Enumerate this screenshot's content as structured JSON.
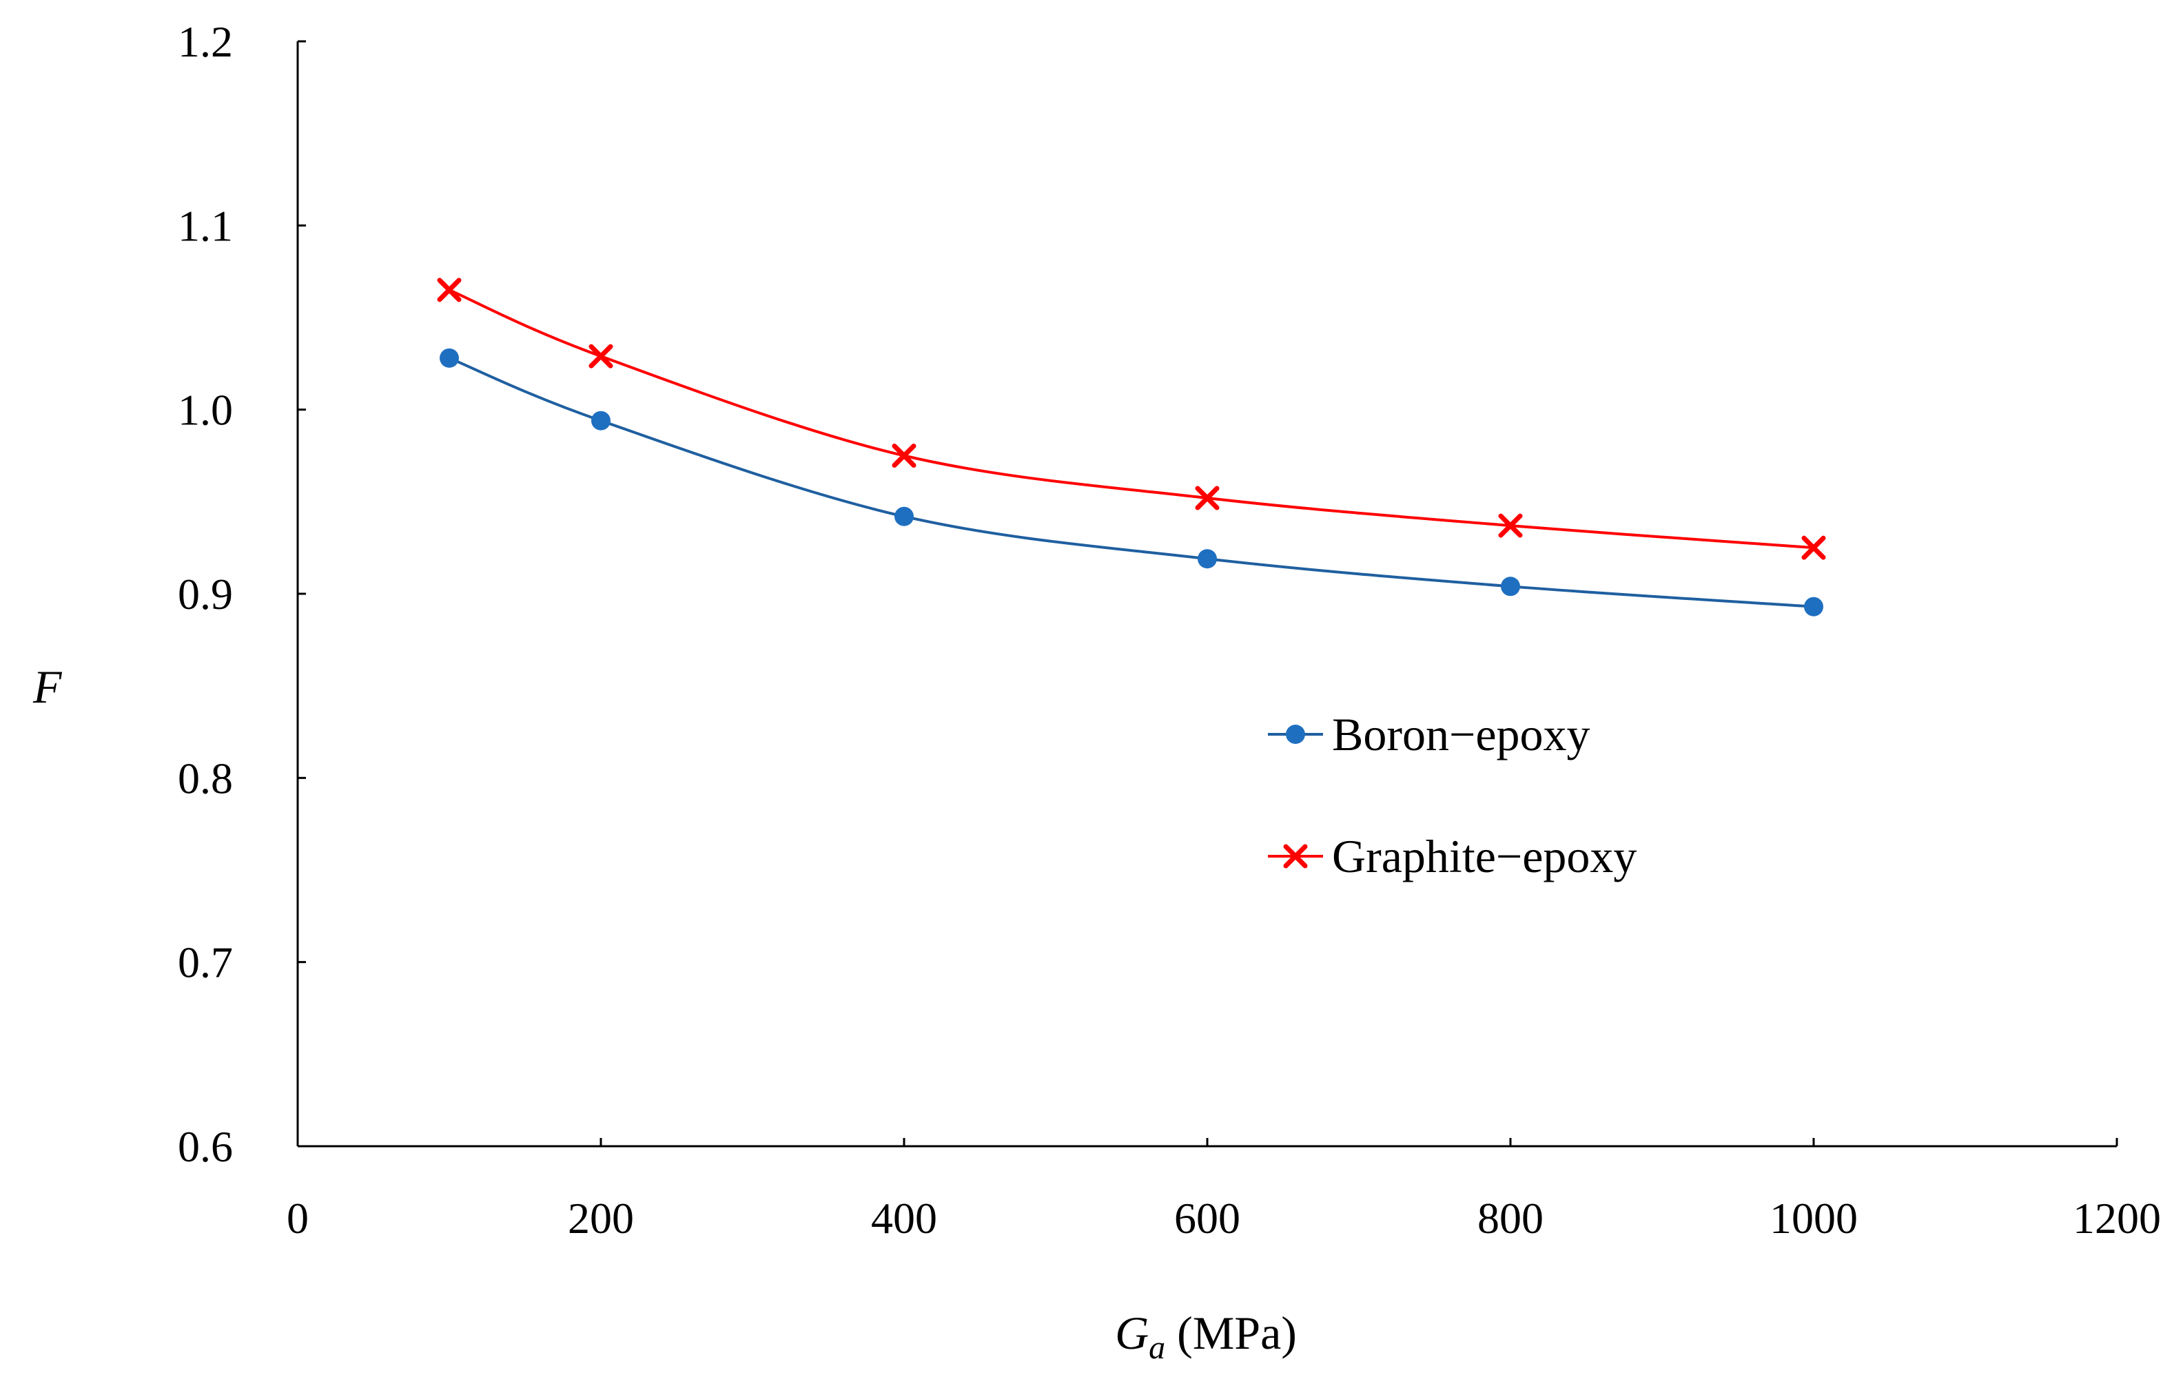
{
  "chart_data": {
    "type": "line",
    "title": "",
    "xlabel": {
      "main": "G",
      "sub": "a",
      "unit": " (MPa)"
    },
    "ylabel": "F",
    "xlim": [
      0,
      1200
    ],
    "ylim": [
      0.6,
      1.2
    ],
    "xticks": [
      0,
      200,
      400,
      600,
      800,
      1000,
      1200
    ],
    "xtick_labels": [
      "0",
      "200",
      "400",
      "600",
      "800",
      "1000",
      "1200"
    ],
    "yticks": [
      0.6,
      0.7,
      0.8,
      0.9,
      1.0,
      1.1,
      1.2
    ],
    "ytick_labels": [
      "0.6",
      "0.7",
      "0.8",
      "0.9",
      "1.0",
      "1.1",
      "1.2"
    ],
    "grid": false,
    "legend_position": "center-right",
    "x": [
      100,
      200,
      400,
      600,
      800,
      1000
    ],
    "series": [
      {
        "name": "Boron−epoxy",
        "marker": "circle",
        "color": "#1f6fc0",
        "line_color": "#1f5fa0",
        "values": [
          1.028,
          0.994,
          0.942,
          0.919,
          0.904,
          0.893
        ]
      },
      {
        "name": "Graphite−epoxy",
        "marker": "x",
        "color": "#ff0000",
        "line_color": "#ff0000",
        "values": [
          1.065,
          1.029,
          0.975,
          0.952,
          0.937,
          0.925
        ]
      }
    ]
  }
}
